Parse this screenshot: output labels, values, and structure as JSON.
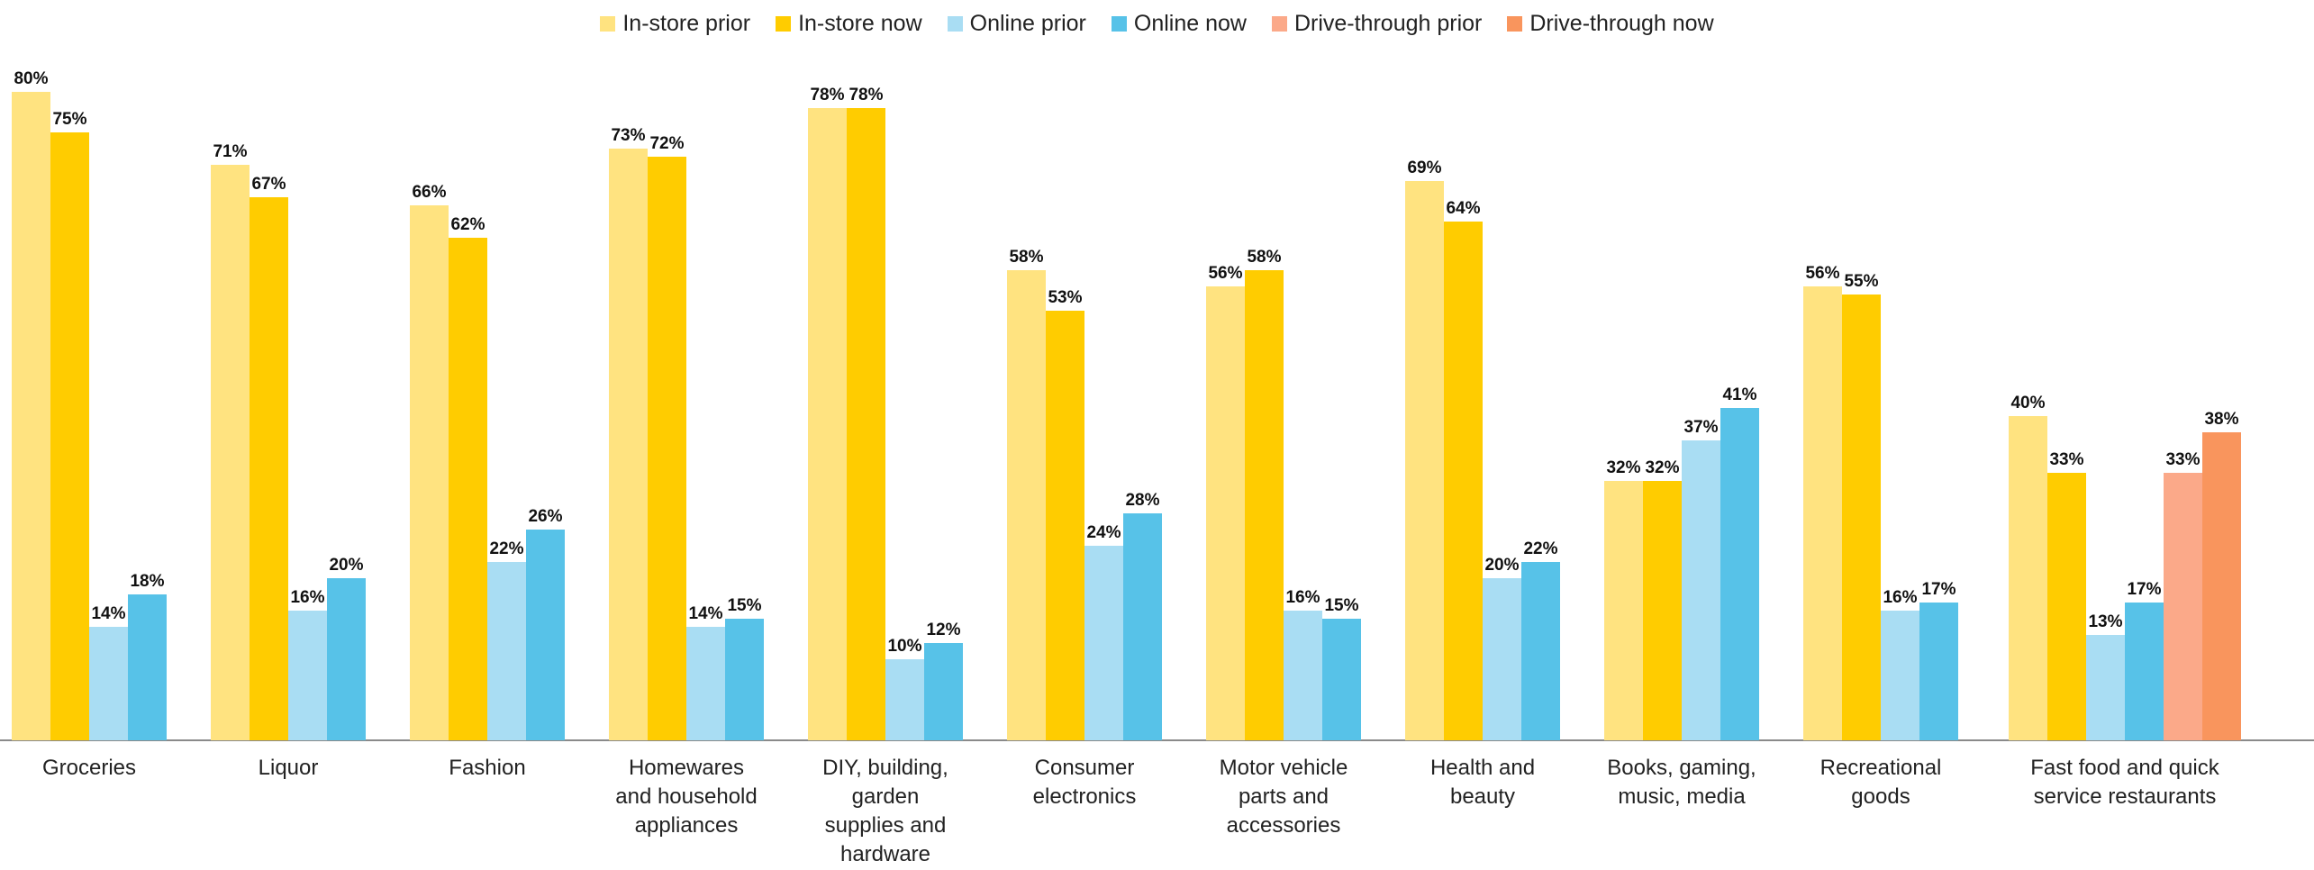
{
  "chart_data": {
    "type": "bar",
    "title": "",
    "xlabel": "",
    "ylabel": "",
    "ylim": [
      0,
      80
    ],
    "grid": false,
    "legend_position": "top-center",
    "value_suffix": "%",
    "categories": [
      "Groceries",
      "Liquor",
      "Fashion",
      "Homewares and household appliances",
      "DIY, building, garden supplies and hardware",
      "Consumer electronics",
      "Motor vehicle parts and accessories",
      "Health and beauty",
      "Books, gaming, music, media",
      "Recreational goods",
      "Fast food and quick service restaurants"
    ],
    "category_label_lines": [
      [
        "Groceries"
      ],
      [
        "Liquor"
      ],
      [
        "Fashion"
      ],
      [
        "Homewares",
        "and household",
        "appliances"
      ],
      [
        "DIY, building,",
        "garden",
        "supplies and",
        "hardware"
      ],
      [
        "Consumer",
        "electronics"
      ],
      [
        "Motor vehicle",
        "parts and",
        "accessories"
      ],
      [
        "Health and",
        "beauty"
      ],
      [
        "Books, gaming,",
        "music, media"
      ],
      [
        "Recreational",
        "goods"
      ],
      [
        "Fast food and quick",
        "service restaurants"
      ]
    ],
    "series": [
      {
        "name": "In-store prior",
        "color": "#FFE380",
        "values": [
          80,
          71,
          66,
          73,
          78,
          58,
          56,
          69,
          32,
          56,
          40
        ]
      },
      {
        "name": "In-store now",
        "color": "#FFCC00",
        "values": [
          75,
          67,
          62,
          72,
          78,
          53,
          58,
          64,
          32,
          55,
          33
        ]
      },
      {
        "name": "Online prior",
        "color": "#A9DDF3",
        "values": [
          14,
          16,
          22,
          14,
          10,
          24,
          16,
          20,
          37,
          16,
          13
        ]
      },
      {
        "name": "Online now",
        "color": "#57C2E8",
        "values": [
          18,
          20,
          26,
          15,
          12,
          28,
          15,
          22,
          41,
          17,
          17
        ]
      },
      {
        "name": "Drive-through prior",
        "color": "#FBA989",
        "values": [
          null,
          null,
          null,
          null,
          null,
          null,
          null,
          null,
          null,
          null,
          33
        ]
      },
      {
        "name": "Drive-through now",
        "color": "#F9955D",
        "values": [
          null,
          null,
          null,
          null,
          null,
          null,
          null,
          null,
          null,
          null,
          38
        ]
      }
    ]
  }
}
